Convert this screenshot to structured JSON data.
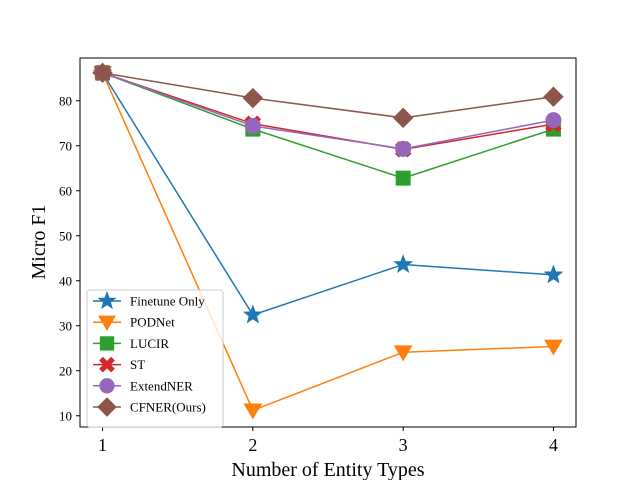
{
  "chart_data": {
    "type": "line",
    "title": "",
    "xlabel": "Number of Entity Types",
    "ylabel": "Micro F1",
    "x": [
      1,
      2,
      3,
      4
    ],
    "xticks": [
      "1",
      "2",
      "3",
      "4"
    ],
    "yticks": [
      10,
      20,
      30,
      40,
      50,
      60,
      70,
      80
    ],
    "xlim": [
      0.85,
      4.15
    ],
    "ylim": [
      7.5,
      89.5
    ],
    "grid": false,
    "legend_position": "lower-left",
    "series": [
      {
        "name": "Finetune Only",
        "values": [
          86.2,
          32.4,
          43.6,
          41.3
        ],
        "color": "#1f77b4",
        "marker": "star"
      },
      {
        "name": "PODNet",
        "values": [
          86.2,
          11.2,
          24.1,
          25.4
        ],
        "color": "#ff7f0e",
        "marker": "triangle-down"
      },
      {
        "name": "LUCIR",
        "values": [
          86.2,
          73.7,
          62.8,
          73.7
        ],
        "color": "#2ca02c",
        "marker": "square"
      },
      {
        "name": "ST",
        "values": [
          86.2,
          74.9,
          69.2,
          74.8
        ],
        "color": "#d62728",
        "marker": "x"
      },
      {
        "name": "ExtendNER",
        "values": [
          86.2,
          74.4,
          69.3,
          75.7
        ],
        "color": "#9467bd",
        "marker": "circle"
      },
      {
        "name": "CFNER(Ours)",
        "values": [
          86.2,
          80.6,
          76.2,
          80.9
        ],
        "color": "#8c564b",
        "marker": "diamond"
      }
    ]
  }
}
